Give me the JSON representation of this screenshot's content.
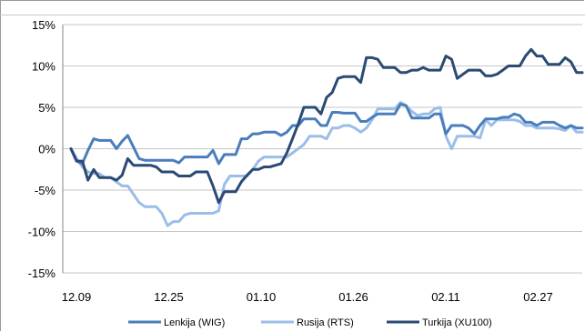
{
  "chart_data": {
    "type": "line",
    "title": "",
    "xlabel": "",
    "ylabel": "",
    "x_tick_labels": [
      "12.09",
      "12.25",
      "01.10",
      "01.26",
      "02.11",
      "02.27"
    ],
    "y_tick_labels": [
      "15%",
      "10%",
      "5%",
      "0%",
      "-5%",
      "-10%",
      "-15%"
    ],
    "y_tick_values": [
      15,
      10,
      5,
      0,
      -5,
      -10,
      -15
    ],
    "ylim": [
      -15,
      15
    ],
    "grid": "horizontal",
    "legend": "bottom",
    "series": [
      {
        "name": "Lenkija (WIG)",
        "color": "#4a7ebb",
        "values": [
          0,
          -1.5,
          -1.8,
          -0.2,
          1.2,
          1,
          1,
          1,
          0,
          0.9,
          1.6,
          0.2,
          -1.2,
          -1.4,
          -1.4,
          -1.4,
          -1.4,
          -1.4,
          -1.4,
          -1.7,
          -1,
          -1,
          -1,
          -1,
          -1,
          -0.2,
          -1.8,
          -0.7,
          -0.7,
          -0.7,
          1.2,
          1.2,
          1.8,
          1.8,
          2,
          2,
          2,
          1.6,
          2,
          2.8,
          2.8,
          3.6,
          3.6,
          3.6,
          2.8,
          2.8,
          4.4,
          4.4,
          4.3,
          4.3,
          4.3,
          3.3,
          3.3,
          3.8,
          4.2,
          4.2,
          4.2,
          4.2,
          5.4,
          5.2,
          3.7,
          3.7,
          3.7,
          3.7,
          4.2,
          4.2,
          1.8,
          2.8,
          2.8,
          2.8,
          2.5,
          1.8,
          2.8,
          3.6,
          3.6,
          3.6,
          3.8,
          3.8,
          4.2,
          4,
          3.2,
          3.2,
          2.8,
          3.2,
          3.2,
          3.2,
          2.8,
          2.5,
          2.8,
          2.5,
          2.5
        ]
      },
      {
        "name": "Rusija (RTS)",
        "color": "#9bbee8",
        "values": [
          0,
          -1.2,
          -2.2,
          -2.8,
          -3,
          -3,
          -3.5,
          -3.5,
          -4,
          -4.5,
          -4.5,
          -5.5,
          -6.5,
          -7,
          -7,
          -7,
          -7.8,
          -9.3,
          -8.8,
          -8.8,
          -8,
          -7.8,
          -7.8,
          -7.8,
          -7.8,
          -7.8,
          -7.5,
          -4.3,
          -3.3,
          -3.3,
          -3.3,
          -3.3,
          -2.5,
          -1.5,
          -1,
          -1,
          -1,
          -1,
          -1,
          -0.5,
          0,
          0.5,
          1.5,
          1.5,
          1.5,
          1.2,
          2.5,
          2.5,
          2.8,
          2.8,
          2.5,
          2,
          2.5,
          3.5,
          4.8,
          4.8,
          4.8,
          4.8,
          5.6,
          5.2,
          4.5,
          4,
          4.2,
          4.2,
          4.8,
          5,
          1.5,
          0,
          1.5,
          1.5,
          1.5,
          1.5,
          1.3,
          3.5,
          2.8,
          3.5,
          3.5,
          3.5,
          3.5,
          3.3,
          2.8,
          2.8,
          2.5,
          2.5,
          2.5,
          2.5,
          2.4,
          2.2,
          2.8,
          2,
          2
        ]
      },
      {
        "name": "Turkija (XU100)",
        "color": "#2b4a74",
        "values": [
          0,
          -1.5,
          -1.5,
          -3.8,
          -2.5,
          -3.5,
          -3.5,
          -3.5,
          -3.8,
          -3.2,
          -1.2,
          -2,
          -2,
          -2,
          -2,
          -2.2,
          -2.8,
          -2.8,
          -2.8,
          -3.3,
          -3.3,
          -3.3,
          -2.8,
          -2.8,
          -2.8,
          -4.5,
          -6.5,
          -5.2,
          -5.2,
          -5.2,
          -4,
          -3.2,
          -2.5,
          -2.5,
          -2.2,
          -2.2,
          -2,
          -1.8,
          -0.5,
          1.2,
          3,
          5,
          5,
          5,
          4.2,
          6.2,
          6.8,
          8.5,
          8.7,
          8.7,
          8.7,
          8,
          11,
          11,
          10.8,
          9.8,
          9.8,
          9.8,
          9.2,
          9.2,
          9.5,
          9.5,
          9.8,
          9.5,
          9.5,
          9.5,
          11.2,
          10.8,
          8.5,
          9,
          9.5,
          9.5,
          9.5,
          8.8,
          8.8,
          9,
          9.5,
          10,
          10,
          10,
          11.2,
          12,
          11.2,
          11.2,
          10.2,
          10.2,
          10.2,
          11,
          10.5,
          9.2,
          9.2
        ]
      }
    ]
  }
}
